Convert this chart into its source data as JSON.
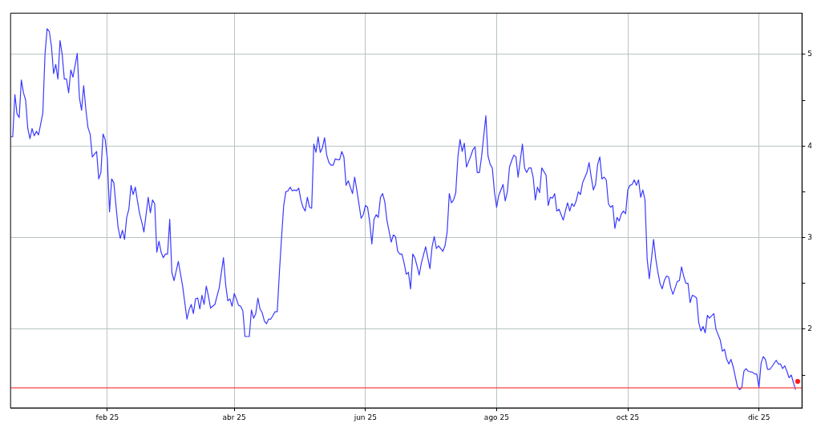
{
  "chart_data": {
    "type": "line",
    "x": [
      "2024-12-18",
      "2024-12-19",
      "2024-12-20",
      "2024-12-21",
      "2024-12-22",
      "2024-12-23",
      "2024-12-24",
      "2024-12-25",
      "2024-12-26",
      "2024-12-27",
      "2024-12-28",
      "2024-12-29",
      "2024-12-30",
      "2024-12-31",
      "2025-01-02",
      "2025-01-03",
      "2025-01-04",
      "2025-01-05",
      "2025-01-06",
      "2025-01-07",
      "2025-01-08",
      "2025-01-09",
      "2025-01-10",
      "2025-01-11",
      "2025-01-12",
      "2025-01-13",
      "2025-01-14",
      "2025-01-15",
      "2025-01-16",
      "2025-01-18",
      "2025-01-19",
      "2025-01-20",
      "2025-01-21",
      "2025-01-22",
      "2025-01-23",
      "2025-01-24",
      "2025-01-25",
      "2025-01-27",
      "2025-01-28",
      "2025-01-29",
      "2025-01-30",
      "2025-01-31",
      "2025-02-01",
      "2025-02-02",
      "2025-02-03",
      "2025-02-04",
      "2025-02-05",
      "2025-02-06",
      "2025-02-07",
      "2025-02-08",
      "2025-02-09",
      "2025-02-10",
      "2025-02-11",
      "2025-02-12",
      "2025-02-13",
      "2025-02-14",
      "2025-02-15",
      "2025-02-16",
      "2025-02-17",
      "2025-02-18",
      "2025-02-20",
      "2025-02-21",
      "2025-02-22",
      "2025-02-23",
      "2025-02-24",
      "2025-02-25",
      "2025-02-26",
      "2025-02-27",
      "2025-02-28",
      "2025-03-01",
      "2025-03-02",
      "2025-03-03",
      "2025-03-04",
      "2025-03-06",
      "2025-03-08",
      "2025-03-10",
      "2025-03-11",
      "2025-03-12",
      "2025-03-13",
      "2025-03-14",
      "2025-03-15",
      "2025-03-16",
      "2025-03-17",
      "2025-03-18",
      "2025-03-19",
      "2025-03-20",
      "2025-03-21",
      "2025-03-23",
      "2025-03-25",
      "2025-03-27",
      "2025-03-28",
      "2025-03-29",
      "2025-03-30",
      "2025-03-31",
      "2025-04-01",
      "2025-04-02",
      "2025-04-03",
      "2025-04-04",
      "2025-04-05",
      "2025-04-06",
      "2025-04-08",
      "2025-04-09",
      "2025-04-10",
      "2025-04-11",
      "2025-04-12",
      "2025-04-13",
      "2025-04-14",
      "2025-04-15",
      "2025-04-16",
      "2025-04-17",
      "2025-04-18",
      "2025-04-19",
      "2025-04-20",
      "2025-04-21",
      "2025-04-22",
      "2025-04-23",
      "2025-04-24",
      "2025-04-25",
      "2025-04-26",
      "2025-04-27",
      "2025-04-28",
      "2025-04-29",
      "2025-04-30",
      "2025-05-01",
      "2025-05-02",
      "2025-05-03",
      "2025-05-04",
      "2025-05-05",
      "2025-05-06",
      "2025-05-07",
      "2025-05-08",
      "2025-05-09",
      "2025-05-10",
      "2025-05-11",
      "2025-05-12",
      "2025-05-13",
      "2025-05-14",
      "2025-05-15",
      "2025-05-16",
      "2025-05-17",
      "2025-05-18",
      "2025-05-19",
      "2025-05-20",
      "2025-05-21",
      "2025-05-22",
      "2025-05-23",
      "2025-05-24",
      "2025-05-26",
      "2025-05-27",
      "2025-05-28",
      "2025-05-30",
      "2025-05-31",
      "2025-06-01",
      "2025-06-02",
      "2025-06-03",
      "2025-06-04",
      "2025-06-05",
      "2025-06-06",
      "2025-06-07",
      "2025-06-08",
      "2025-06-09",
      "2025-06-10",
      "2025-06-11",
      "2025-06-13",
      "2025-06-14",
      "2025-06-15",
      "2025-06-16",
      "2025-06-17",
      "2025-06-18",
      "2025-06-19",
      "2025-06-20",
      "2025-06-21",
      "2025-06-22",
      "2025-06-23",
      "2025-06-24",
      "2025-06-25",
      "2025-06-26",
      "2025-06-27",
      "2025-06-29",
      "2025-07-01",
      "2025-07-02",
      "2025-07-03",
      "2025-07-04",
      "2025-07-05",
      "2025-07-07",
      "2025-07-08",
      "2025-07-09",
      "2025-07-10",
      "2025-07-11",
      "2025-07-12",
      "2025-07-13",
      "2025-07-14",
      "2025-07-15",
      "2025-07-16",
      "2025-07-17",
      "2025-07-18",
      "2025-07-19",
      "2025-07-20",
      "2025-07-21",
      "2025-07-22",
      "2025-07-23",
      "2025-07-24",
      "2025-07-25",
      "2025-07-27",
      "2025-07-28",
      "2025-07-29",
      "2025-07-30",
      "2025-07-31",
      "2025-08-01",
      "2025-08-02",
      "2025-08-04",
      "2025-08-05",
      "2025-08-06",
      "2025-08-07",
      "2025-08-08",
      "2025-08-09",
      "2025-08-10",
      "2025-08-11",
      "2025-08-12",
      "2025-08-13",
      "2025-08-14",
      "2025-08-15",
      "2025-08-16",
      "2025-08-17",
      "2025-08-18",
      "2025-08-19",
      "2025-08-20",
      "2025-08-21",
      "2025-08-22",
      "2025-08-24",
      "2025-08-25",
      "2025-08-26",
      "2025-08-27",
      "2025-08-28",
      "2025-08-29",
      "2025-08-30",
      "2025-09-01",
      "2025-09-02",
      "2025-09-03",
      "2025-09-04",
      "2025-09-05",
      "2025-09-06",
      "2025-09-07",
      "2025-09-08",
      "2025-09-09",
      "2025-09-10",
      "2025-09-12",
      "2025-09-13",
      "2025-09-14",
      "2025-09-15",
      "2025-09-16",
      "2025-09-17",
      "2025-09-18",
      "2025-09-19",
      "2025-09-20",
      "2025-09-21",
      "2025-09-22",
      "2025-09-23",
      "2025-09-24",
      "2025-09-25",
      "2025-09-26",
      "2025-09-27",
      "2025-09-28",
      "2025-09-29",
      "2025-09-30",
      "2025-10-01",
      "2025-10-02",
      "2025-10-03",
      "2025-10-04",
      "2025-10-05",
      "2025-10-06",
      "2025-10-07",
      "2025-10-08",
      "2025-10-09",
      "2025-10-10",
      "2025-10-11",
      "2025-10-13",
      "2025-10-14",
      "2025-10-15",
      "2025-10-16",
      "2025-10-17",
      "2025-10-18",
      "2025-10-19",
      "2025-10-20",
      "2025-10-21",
      "2025-10-22",
      "2025-10-24",
      "2025-10-25",
      "2025-10-26",
      "2025-10-27",
      "2025-10-28",
      "2025-10-29",
      "2025-10-30",
      "2025-10-31",
      "2025-11-01",
      "2025-11-02",
      "2025-11-03",
      "2025-11-04",
      "2025-11-05",
      "2025-11-06",
      "2025-11-07",
      "2025-11-08",
      "2025-11-10",
      "2025-11-11",
      "2025-11-13",
      "2025-11-14",
      "2025-11-15",
      "2025-11-16",
      "2025-11-17",
      "2025-11-18",
      "2025-11-19",
      "2025-11-21",
      "2025-11-22",
      "2025-11-23",
      "2025-11-24",
      "2025-11-25",
      "2025-11-26",
      "2025-11-28",
      "2025-11-29",
      "2025-11-30",
      "2025-12-01",
      "2025-12-02",
      "2025-12-03",
      "2025-12-04",
      "2025-12-05",
      "2025-12-06",
      "2025-12-07",
      "2025-12-09",
      "2025-12-10",
      "2025-12-11",
      "2025-12-12",
      "2025-12-13",
      "2025-12-14",
      "2025-12-15",
      "2025-12-16",
      "2025-12-18"
    ],
    "series": [
      {
        "color": "#3a3aff",
        "marker": "none",
        "values": [
          4.1,
          4.1,
          4.56,
          4.35,
          4.31,
          4.72,
          4.58,
          4.5,
          4.19,
          4.08,
          4.19,
          4.11,
          4.16,
          4.12,
          4.36,
          5.0,
          5.28,
          5.25,
          5.09,
          4.79,
          4.89,
          4.73,
          5.15,
          5.0,
          4.73,
          4.73,
          4.58,
          4.83,
          4.75,
          5.01,
          4.53,
          4.39,
          4.66,
          4.4,
          4.2,
          4.13,
          3.88,
          3.94,
          3.64,
          3.71,
          4.13,
          4.07,
          3.86,
          3.28,
          3.64,
          3.6,
          3.35,
          3.11,
          2.99,
          3.08,
          2.98,
          3.22,
          3.31,
          3.57,
          3.47,
          3.55,
          3.4,
          3.26,
          3.17,
          3.06,
          3.44,
          3.27,
          3.41,
          3.37,
          2.84,
          2.96,
          2.84,
          2.78,
          2.82,
          2.82,
          3.2,
          2.62,
          2.53,
          2.74,
          2.47,
          2.11,
          2.21,
          2.27,
          2.17,
          2.33,
          2.34,
          2.22,
          2.37,
          2.27,
          2.47,
          2.36,
          2.23,
          2.27,
          2.45,
          2.78,
          2.49,
          2.31,
          2.33,
          2.25,
          2.39,
          2.33,
          2.26,
          2.25,
          2.2,
          1.92,
          1.92,
          2.21,
          2.12,
          2.17,
          2.34,
          2.22,
          2.18,
          2.09,
          2.06,
          2.11,
          2.11,
          2.15,
          2.19,
          2.19,
          2.62,
          3.0,
          3.35,
          3.5,
          3.51,
          3.55,
          3.51,
          3.52,
          3.51,
          3.54,
          3.41,
          3.33,
          3.29,
          3.44,
          3.33,
          3.32,
          4.02,
          3.93,
          4.1,
          3.93,
          3.98,
          4.09,
          3.9,
          3.82,
          3.79,
          3.79,
          3.86,
          3.85,
          3.85,
          3.94,
          3.88,
          3.57,
          3.62,
          3.48,
          3.66,
          3.52,
          3.21,
          3.25,
          3.35,
          3.33,
          3.17,
          2.93,
          3.2,
          3.25,
          3.22,
          3.44,
          3.48,
          3.39,
          3.19,
          2.95,
          3.03,
          3.01,
          2.85,
          2.82,
          2.82,
          2.72,
          2.6,
          2.62,
          2.44,
          2.82,
          2.78,
          2.69,
          2.59,
          2.72,
          2.9,
          2.66,
          2.9,
          3.01,
          2.88,
          2.91,
          2.85,
          2.91,
          3.06,
          3.48,
          3.38,
          3.41,
          3.49,
          3.88,
          4.07,
          3.94,
          4.03,
          3.77,
          3.83,
          3.89,
          3.96,
          3.99,
          3.71,
          3.71,
          3.88,
          4.33,
          3.89,
          3.8,
          3.76,
          3.5,
          3.33,
          3.46,
          3.58,
          3.4,
          3.5,
          3.77,
          3.84,
          3.9,
          3.88,
          3.66,
          3.84,
          4.02,
          3.76,
          3.71,
          3.76,
          3.76,
          3.66,
          3.41,
          3.55,
          3.49,
          3.76,
          3.68,
          3.35,
          3.44,
          3.43,
          3.48,
          3.29,
          3.31,
          3.19,
          3.29,
          3.38,
          3.29,
          3.37,
          3.34,
          3.4,
          3.5,
          3.47,
          3.6,
          3.71,
          3.82,
          3.66,
          3.52,
          3.58,
          3.8,
          3.88,
          3.64,
          3.66,
          3.63,
          3.37,
          3.33,
          3.35,
          3.1,
          3.22,
          3.18,
          3.26,
          3.29,
          3.26,
          3.52,
          3.57,
          3.58,
          3.63,
          3.57,
          3.63,
          3.44,
          3.52,
          3.41,
          2.77,
          2.55,
          2.98,
          2.77,
          2.62,
          2.5,
          2.44,
          2.53,
          2.58,
          2.57,
          2.45,
          2.38,
          2.52,
          2.53,
          2.68,
          2.58,
          2.5,
          2.5,
          2.29,
          2.37,
          2.36,
          2.34,
          2.07,
          1.98,
          2.03,
          1.96,
          2.15,
          2.12,
          2.17,
          2.0,
          1.88,
          1.76,
          1.78,
          1.67,
          1.62,
          1.67,
          1.59,
          1.37,
          1.34,
          1.36,
          1.54,
          1.57,
          1.54,
          1.53,
          1.51,
          1.51,
          1.36,
          1.63,
          1.7,
          1.67,
          1.56,
          1.56,
          1.59,
          1.66,
          1.62,
          1.62,
          1.57,
          1.6,
          1.54,
          1.47,
          1.5,
          1.34
        ]
      },
      {
        "type": "scatter",
        "color": "#ff2020",
        "marker": "circle",
        "x": [
          "2025-12-19"
        ],
        "values": [
          1.43
        ]
      }
    ],
    "xlim": [
      "2024-12-18",
      "2025-12-21"
    ],
    "xticks": [
      {
        "value": "2025-02-01",
        "label": "feb 25"
      },
      {
        "value": "2025-04-01",
        "label": "abr 25"
      },
      {
        "value": "2025-06-01",
        "label": "jun 25"
      },
      {
        "value": "2025-08-01",
        "label": "ago 25"
      },
      {
        "value": "2025-10-01",
        "label": "oct 25"
      },
      {
        "value": "2025-12-01",
        "label": "dic 25"
      }
    ],
    "ylim": [
      1.14,
      5.45
    ],
    "yticks": [
      {
        "value": 1.5,
        "label": null
      },
      2,
      {
        "value": 2.5,
        "label": null
      },
      3,
      {
        "value": 3.5,
        "label": null
      },
      4,
      {
        "value": 4.5,
        "label": null
      },
      5
    ],
    "ref_lines": [
      {
        "axis": "y",
        "value": 1.36,
        "color": "#ff4040"
      }
    ],
    "grid": true,
    "line_style": "solid"
  }
}
